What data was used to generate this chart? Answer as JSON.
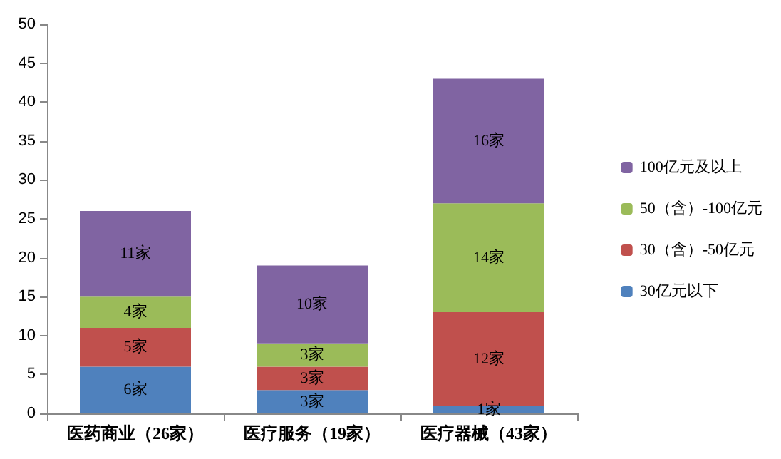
{
  "chart_data": {
    "type": "bar",
    "stacked": true,
    "categories": [
      "医药商业（26家）",
      "医疗服务（19家）",
      "医疗器械（43家）"
    ],
    "series": [
      {
        "name": "30亿元以下",
        "color": "#4f81bd",
        "values": [
          6,
          3,
          1
        ],
        "value_labels": [
          "6家",
          "3家",
          "1家"
        ]
      },
      {
        "name": "30（含）-50亿元",
        "color": "#c0504d",
        "values": [
          5,
          3,
          12
        ],
        "value_labels": [
          "5家",
          "3家",
          "12家"
        ]
      },
      {
        "name": "50（含）-100亿元",
        "color": "#9bbb59",
        "values": [
          4,
          3,
          14
        ],
        "value_labels": [
          "4家",
          "3家",
          "14家"
        ]
      },
      {
        "name": "100亿元及以上",
        "color": "#8064a2",
        "values": [
          11,
          10,
          16
        ],
        "value_labels": [
          "11家",
          "10家",
          "16家"
        ]
      }
    ],
    "ylim": [
      0,
      50
    ],
    "yticks": [
      0,
      5,
      10,
      15,
      20,
      25,
      30,
      35,
      40,
      45,
      50
    ],
    "grid": false,
    "legend": "right"
  }
}
